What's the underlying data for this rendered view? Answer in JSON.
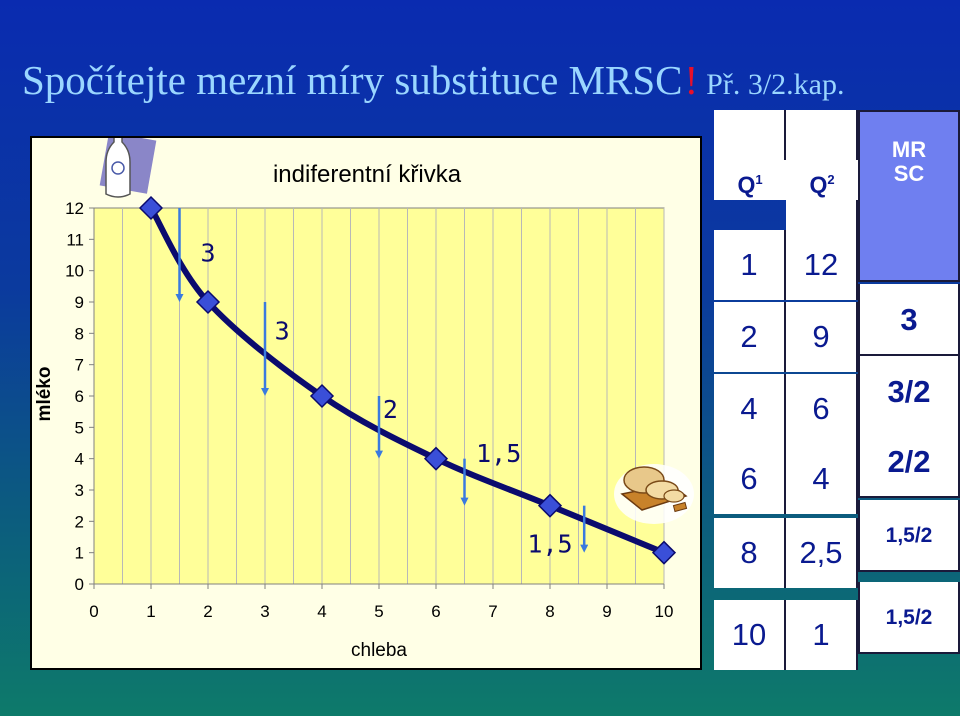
{
  "title": {
    "main": "Spočítejte mezní míry substituce MRSC",
    "excl": "!",
    "ref": "Př. 3/2.kap."
  },
  "icons": {
    "milk": "milk-bottle-icon",
    "bread": "bread-board-icon"
  },
  "colors": {
    "line": "#0b0b6e",
    "marker": "#3a4fd8",
    "arrow": "#3a7adf",
    "plot_bg": "#ffff99",
    "panel_bg": "#ffffe6"
  },
  "chart_data": {
    "type": "line",
    "title": "indiferentní křivka",
    "xlabel": "chleba",
    "ylabel": "mléko",
    "xlim": [
      0,
      10
    ],
    "ylim": [
      0,
      12
    ],
    "x_ticks": [
      "0",
      "1",
      "2",
      "3",
      "4",
      "5",
      "6",
      "7",
      "8",
      "9",
      "10"
    ],
    "y_ticks": [
      "0",
      "1",
      "2",
      "3",
      "4",
      "5",
      "6",
      "7",
      "8",
      "9",
      "10",
      "11",
      "12"
    ],
    "grid": true,
    "points": [
      {
        "x": 1,
        "y": 12
      },
      {
        "x": 2,
        "y": 9
      },
      {
        "x": 4,
        "y": 6
      },
      {
        "x": 6,
        "y": 4
      },
      {
        "x": 8,
        "y": 2.5
      },
      {
        "x": 10,
        "y": 1
      }
    ],
    "annotations": [
      {
        "label": "3",
        "x": 2,
        "y": 10.3,
        "arrow_x": 1.5,
        "arrow_from": 12,
        "arrow_to": 9
      },
      {
        "label": "3",
        "x": 3.3,
        "y": 7.8,
        "arrow_x": 3,
        "arrow_from": 9,
        "arrow_to": 6
      },
      {
        "label": "2",
        "x": 5.2,
        "y": 5.3,
        "arrow_x": 5,
        "arrow_from": 6,
        "arrow_to": 4
      },
      {
        "label": "1,5",
        "x": 7.1,
        "y": 3.9,
        "arrow_x": 6.5,
        "arrow_from": 4,
        "arrow_to": 2.5
      },
      {
        "label": "1,5",
        "x": 8.0,
        "y": 1.0,
        "arrow_x": 8.6,
        "arrow_from": 2.5,
        "arrow_to": 1
      }
    ]
  },
  "table": {
    "headers": {
      "q1": "Q",
      "q1_sup": "1",
      "q2": "Q",
      "q2_sup": "2",
      "mr_line1": "MR",
      "mr_line2": "SC"
    },
    "q1": [
      "1",
      "2",
      "4",
      "6",
      "8",
      "10"
    ],
    "q2": [
      "12",
      "9",
      "6",
      "4",
      "2,5",
      "1"
    ],
    "mrsc": [
      "",
      "3",
      "3/2",
      "2/2",
      "1,5/2",
      "1,5/2"
    ]
  }
}
